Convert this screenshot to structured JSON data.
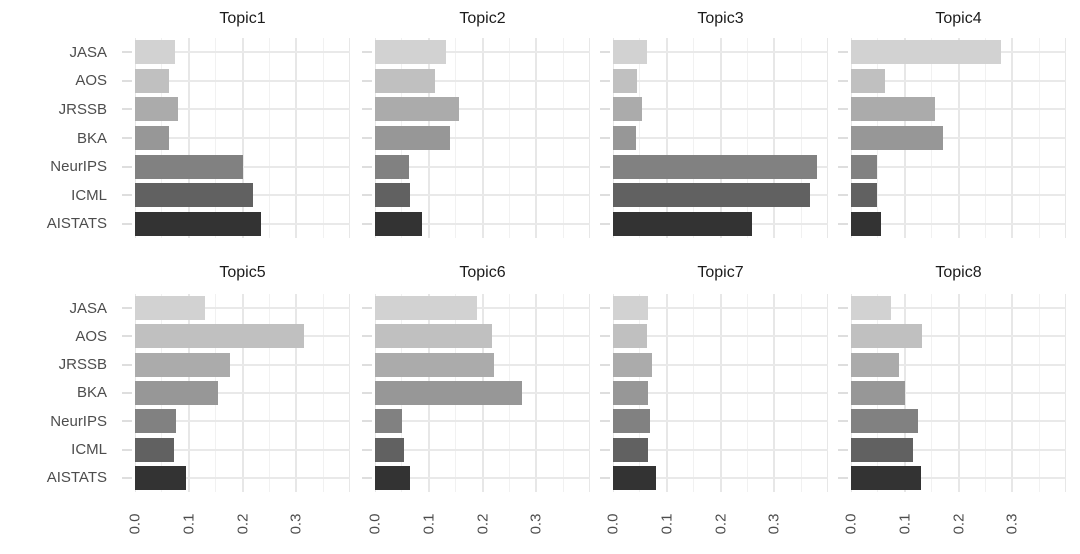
{
  "chart_data": {
    "type": "bar",
    "orientation": "horizontal",
    "facet_layout": {
      "rows": 2,
      "cols": 4
    },
    "categories": [
      "JASA",
      "AOS",
      "JRSSB",
      "BKA",
      "NeurIPS",
      "ICML",
      "AISTATS"
    ],
    "series": [
      {
        "name": "Topic1",
        "values": [
          0.075,
          0.063,
          0.08,
          0.063,
          0.2,
          0.22,
          0.235
        ]
      },
      {
        "name": "Topic2",
        "values": [
          0.132,
          0.111,
          0.157,
          0.139,
          0.064,
          0.066,
          0.088
        ]
      },
      {
        "name": "Topic3",
        "values": [
          0.064,
          0.044,
          0.054,
          0.042,
          0.379,
          0.366,
          0.259
        ]
      },
      {
        "name": "Topic4",
        "values": [
          0.279,
          0.064,
          0.157,
          0.171,
          0.049,
          0.048,
          0.056
        ]
      },
      {
        "name": "Topic5",
        "values": [
          0.13,
          0.315,
          0.177,
          0.154,
          0.076,
          0.072,
          0.095
        ]
      },
      {
        "name": "Topic6",
        "values": [
          0.189,
          0.217,
          0.222,
          0.274,
          0.051,
          0.054,
          0.065
        ]
      },
      {
        "name": "Topic7",
        "values": [
          0.066,
          0.064,
          0.073,
          0.066,
          0.068,
          0.066,
          0.08
        ]
      },
      {
        "name": "Topic8",
        "values": [
          0.074,
          0.133,
          0.089,
          0.101,
          0.125,
          0.116,
          0.13
        ]
      }
    ],
    "xlim": [
      0,
      0.4
    ],
    "x_major_ticks": [
      0.0,
      0.1,
      0.2,
      0.3,
      0.4
    ],
    "x_minor_ticks": [
      0.05,
      0.15,
      0.25,
      0.35
    ],
    "x_tick_labels": [
      "0.0",
      "0.1",
      "0.2",
      "0.3"
    ],
    "x_tick_label_values": [
      0.0,
      0.1,
      0.2,
      0.3
    ],
    "x_tick_label_angle_deg": 90,
    "grid": true,
    "legend": "none",
    "title": "",
    "xlabel": "",
    "ylabel": "",
    "bar_palette": [
      "#d2d2d2",
      "#c0c0c0",
      "#ababab",
      "#979797",
      "#818181",
      "#616161",
      "#333333"
    ],
    "colors": {
      "background": "#ffffff",
      "grid_major": "#e7e7e7",
      "grid_minor": "#f1f1f1",
      "axis_tick": "#dedede",
      "axis_text": "#4d4d4d",
      "facet_title_text": "#1c1c1c"
    }
  }
}
